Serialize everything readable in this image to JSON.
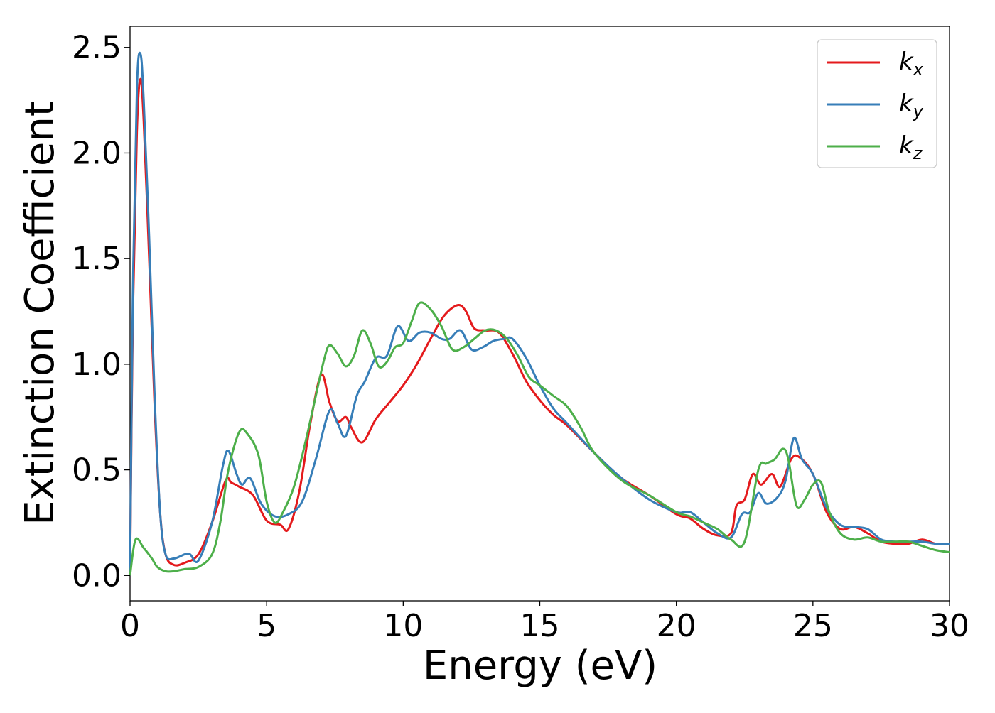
{
  "chart_data": {
    "type": "line",
    "title": "",
    "xlabel": "Energy (eV)",
    "ylabel": "Extinction Coefficient",
    "xlim": [
      0,
      30
    ],
    "ylim": [
      -0.12,
      2.6
    ],
    "xticks": [
      0,
      5,
      10,
      15,
      20,
      25,
      30
    ],
    "xtick_labels": [
      "0",
      "5",
      "10",
      "15",
      "20",
      "25",
      "30"
    ],
    "yticks": [
      0.0,
      0.5,
      1.0,
      1.5,
      2.0,
      2.5
    ],
    "ytick_labels": [
      "0.0",
      "0.5",
      "1.0",
      "1.5",
      "2.0",
      "2.5"
    ],
    "grid": false,
    "legend_position": "top-right",
    "series": [
      {
        "name": "k_x",
        "label_base": "k",
        "label_sub": "x",
        "color": "#e41a1c",
        "x": [
          0,
          0.1,
          0.25,
          0.38,
          0.5,
          0.7,
          0.9,
          1.1,
          1.3,
          1.6,
          2.0,
          2.5,
          3.0,
          3.5,
          3.7,
          4.0,
          4.5,
          5.0,
          5.5,
          5.8,
          6.2,
          6.6,
          7.0,
          7.3,
          7.6,
          7.9,
          8.1,
          8.5,
          9.0,
          9.5,
          10.0,
          10.5,
          11.0,
          11.5,
          12.0,
          12.3,
          12.6,
          13.0,
          13.5,
          14.0,
          14.5,
          15.0,
          15.5,
          16.0,
          17.0,
          18.0,
          19.0,
          20.0,
          20.5,
          21.0,
          21.5,
          22.0,
          22.2,
          22.5,
          22.8,
          23.1,
          23.5,
          23.8,
          24.2,
          24.5,
          25.0,
          25.5,
          26.0,
          26.5,
          27.0,
          27.5,
          28.0,
          28.5,
          29.0,
          29.5,
          30.0
        ],
        "y": [
          0.0,
          1.2,
          2.1,
          2.35,
          2.15,
          1.5,
          0.8,
          0.3,
          0.1,
          0.05,
          0.06,
          0.1,
          0.25,
          0.45,
          0.44,
          0.42,
          0.38,
          0.26,
          0.24,
          0.22,
          0.4,
          0.72,
          0.95,
          0.82,
          0.73,
          0.75,
          0.7,
          0.63,
          0.74,
          0.82,
          0.9,
          1.0,
          1.12,
          1.23,
          1.28,
          1.25,
          1.17,
          1.16,
          1.15,
          1.05,
          0.92,
          0.83,
          0.76,
          0.71,
          0.58,
          0.46,
          0.38,
          0.29,
          0.27,
          0.22,
          0.19,
          0.2,
          0.33,
          0.36,
          0.48,
          0.43,
          0.48,
          0.42,
          0.55,
          0.56,
          0.48,
          0.3,
          0.22,
          0.23,
          0.2,
          0.16,
          0.15,
          0.15,
          0.17,
          0.15,
          0.15
        ]
      },
      {
        "name": "k_y",
        "label_base": "k",
        "label_sub": "y",
        "color": "#377eb8",
        "x": [
          0,
          0.1,
          0.25,
          0.38,
          0.5,
          0.7,
          0.9,
          1.1,
          1.3,
          1.6,
          2.0,
          2.2,
          2.5,
          3.0,
          3.4,
          3.6,
          3.9,
          4.1,
          4.4,
          4.8,
          5.3,
          5.8,
          6.3,
          6.8,
          7.3,
          7.6,
          7.9,
          8.3,
          8.6,
          9.0,
          9.4,
          9.8,
          10.2,
          10.6,
          11.0,
          11.4,
          11.7,
          12.1,
          12.5,
          12.9,
          13.3,
          13.7,
          14.0,
          14.5,
          15.0,
          15.5,
          16.0,
          17.0,
          18.0,
          19.0,
          20.0,
          20.5,
          21.0,
          21.5,
          22.0,
          22.4,
          22.7,
          23.0,
          23.3,
          23.7,
          24.0,
          24.3,
          24.6,
          25.0,
          25.5,
          26.0,
          26.5,
          27.0,
          27.5,
          28.0,
          28.5,
          29.0,
          29.5,
          30.0
        ],
        "y": [
          0.0,
          1.3,
          2.3,
          2.47,
          2.25,
          1.6,
          0.85,
          0.3,
          0.1,
          0.08,
          0.1,
          0.1,
          0.07,
          0.25,
          0.52,
          0.59,
          0.48,
          0.43,
          0.46,
          0.34,
          0.28,
          0.29,
          0.35,
          0.55,
          0.78,
          0.72,
          0.66,
          0.85,
          0.92,
          1.03,
          1.04,
          1.18,
          1.11,
          1.15,
          1.15,
          1.12,
          1.12,
          1.16,
          1.07,
          1.08,
          1.11,
          1.12,
          1.12,
          1.03,
          0.9,
          0.79,
          0.72,
          0.58,
          0.46,
          0.36,
          0.3,
          0.3,
          0.25,
          0.2,
          0.18,
          0.29,
          0.3,
          0.39,
          0.34,
          0.37,
          0.45,
          0.65,
          0.55,
          0.48,
          0.32,
          0.24,
          0.23,
          0.22,
          0.17,
          0.16,
          0.16,
          0.16,
          0.15,
          0.15
        ]
      },
      {
        "name": "k_z",
        "label_base": "k",
        "label_sub": "z",
        "color": "#4daf4a",
        "x": [
          0,
          0.2,
          0.5,
          0.8,
          1.0,
          1.3,
          1.6,
          2.0,
          2.5,
          3.0,
          3.3,
          3.6,
          4.0,
          4.3,
          4.7,
          5.0,
          5.3,
          5.6,
          6.0,
          6.4,
          6.8,
          7.1,
          7.3,
          7.6,
          7.9,
          8.2,
          8.5,
          8.8,
          9.1,
          9.4,
          9.7,
          10.0,
          10.3,
          10.6,
          11.0,
          11.4,
          11.8,
          12.2,
          12.6,
          13.0,
          13.4,
          13.8,
          14.2,
          14.6,
          15.0,
          15.5,
          16.0,
          16.5,
          17.0,
          18.0,
          19.0,
          20.0,
          20.5,
          21.0,
          21.5,
          22.0,
          22.5,
          23.0,
          23.3,
          23.6,
          23.9,
          24.1,
          24.4,
          24.7,
          25.0,
          25.3,
          25.6,
          26.0,
          26.5,
          27.0,
          27.5,
          28.0,
          28.5,
          29.0,
          29.5,
          30.0
        ],
        "y": [
          0.0,
          0.17,
          0.13,
          0.08,
          0.04,
          0.02,
          0.02,
          0.03,
          0.04,
          0.1,
          0.25,
          0.5,
          0.68,
          0.67,
          0.57,
          0.35,
          0.25,
          0.3,
          0.42,
          0.62,
          0.85,
          1.02,
          1.09,
          1.05,
          0.99,
          1.04,
          1.16,
          1.1,
          0.99,
          1.01,
          1.08,
          1.1,
          1.2,
          1.29,
          1.26,
          1.18,
          1.07,
          1.08,
          1.12,
          1.16,
          1.16,
          1.12,
          1.04,
          0.94,
          0.9,
          0.85,
          0.8,
          0.7,
          0.58,
          0.45,
          0.38,
          0.3,
          0.28,
          0.25,
          0.22,
          0.17,
          0.16,
          0.5,
          0.53,
          0.55,
          0.6,
          0.55,
          0.33,
          0.36,
          0.43,
          0.44,
          0.3,
          0.2,
          0.17,
          0.18,
          0.16,
          0.16,
          0.16,
          0.14,
          0.12,
          0.11
        ]
      }
    ]
  }
}
